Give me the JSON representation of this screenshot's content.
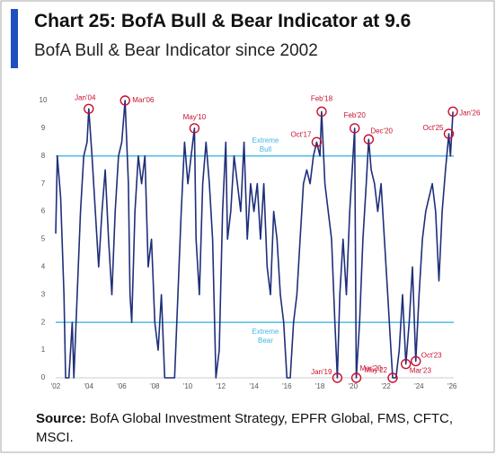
{
  "chart_data": {
    "type": "line",
    "title": "Chart 25: BofA Bull & Bear Indicator at 9.6",
    "subtitle": "BofA Bull & Bear Indicator since 2002",
    "source_label": "Source:",
    "source": "BofA Global Investment Strategy, EPFR Global, FMS, CFTC, MSCI.",
    "x": [
      2002.0,
      2002.1,
      2002.3,
      2002.5,
      2002.6,
      2002.8,
      2003.0,
      2003.1,
      2003.3,
      2003.5,
      2003.7,
      2003.9,
      2004.0,
      2004.2,
      2004.4,
      2004.6,
      2004.8,
      2005.0,
      2005.2,
      2005.4,
      2005.6,
      2005.8,
      2006.0,
      2006.2,
      2006.4,
      2006.5,
      2006.6,
      2006.8,
      2007.0,
      2007.2,
      2007.4,
      2007.6,
      2007.8,
      2008.0,
      2008.2,
      2008.4,
      2008.6,
      2008.9,
      2009.2,
      2009.4,
      2009.6,
      2009.8,
      2010.0,
      2010.2,
      2010.4,
      2010.5,
      2010.7,
      2010.9,
      2011.1,
      2011.3,
      2011.5,
      2011.7,
      2011.9,
      2012.1,
      2012.3,
      2012.4,
      2012.6,
      2012.8,
      2013.0,
      2013.2,
      2013.4,
      2013.6,
      2013.8,
      2014.0,
      2014.2,
      2014.4,
      2014.6,
      2014.8,
      2015.0,
      2015.2,
      2015.4,
      2015.6,
      2015.8,
      2016.0,
      2016.2,
      2016.4,
      2016.6,
      2016.8,
      2017.0,
      2017.2,
      2017.4,
      2017.6,
      2017.8,
      2018.0,
      2018.1,
      2018.3,
      2018.5,
      2018.7,
      2018.9,
      2019.05,
      2019.2,
      2019.4,
      2019.6,
      2019.8,
      2020.0,
      2020.1,
      2020.2,
      2020.4,
      2020.6,
      2020.8,
      2020.95,
      2021.1,
      2021.3,
      2021.5,
      2021.7,
      2021.9,
      2022.1,
      2022.3,
      2022.4,
      2022.6,
      2022.8,
      2023.0,
      2023.2,
      2023.4,
      2023.6,
      2023.8,
      2024.0,
      2024.2,
      2024.4,
      2024.6,
      2024.8,
      2025.0,
      2025.2,
      2025.4,
      2025.6,
      2025.8,
      2025.9,
      2026.05
    ],
    "series": [
      {
        "name": "BofA Bull & Bear Indicator",
        "color": "#1f2f7a",
        "values": [
          5.2,
          8.0,
          6.5,
          3,
          0,
          0,
          2,
          0,
          3,
          6,
          8,
          8.5,
          9.7,
          8,
          6,
          4,
          6,
          7.5,
          5,
          3,
          6,
          8,
          8.5,
          10,
          7,
          3,
          2,
          6,
          8,
          7,
          8,
          4,
          5,
          2,
          1,
          3,
          0,
          0,
          0,
          3,
          6,
          8.5,
          7,
          8,
          9,
          5,
          3,
          7,
          8.5,
          7,
          5,
          0,
          1,
          6,
          8.5,
          5,
          6,
          8,
          7,
          6,
          8.5,
          5,
          7,
          6,
          7,
          5,
          7,
          4,
          3,
          6,
          5,
          3,
          2,
          0,
          0,
          2,
          3,
          5,
          7,
          7.5,
          7,
          8,
          8.5,
          8,
          9.6,
          7,
          6,
          5,
          2,
          0,
          3,
          5,
          3,
          6,
          8,
          9.0,
          0,
          2,
          5,
          7,
          8.6,
          7.5,
          7,
          6,
          7,
          5,
          3,
          1,
          0,
          0,
          1,
          3,
          0.5,
          2,
          4,
          0.6,
          3,
          5,
          6,
          6.5,
          7,
          6,
          3.5,
          6,
          7.5,
          8.8,
          8,
          9.6
        ]
      }
    ],
    "xlim": [
      2002,
      2026.1
    ],
    "xticks": [
      {
        "value": 2002,
        "label": "'02"
      },
      {
        "value": 2004,
        "label": "'04"
      },
      {
        "value": 2006,
        "label": "'06"
      },
      {
        "value": 2008,
        "label": "'08"
      },
      {
        "value": 2010,
        "label": "'10"
      },
      {
        "value": 2012,
        "label": "'12"
      },
      {
        "value": 2014,
        "label": "'14"
      },
      {
        "value": 2016,
        "label": "'16"
      },
      {
        "value": 2018,
        "label": "'18"
      },
      {
        "value": 2020,
        "label": "'20"
      },
      {
        "value": 2022,
        "label": "'22"
      },
      {
        "value": 2024,
        "label": "'24"
      },
      {
        "value": 2026,
        "label": "'26"
      }
    ],
    "ylim": [
      0,
      10
    ],
    "yticks": [
      0,
      1,
      2,
      3,
      4,
      5,
      6,
      7,
      8,
      9,
      10
    ],
    "reference_lines": [
      {
        "value": 8,
        "label": "Extreme Bull",
        "color": "#41b6e6"
      },
      {
        "value": 2,
        "label": "Extreme Bear",
        "color": "#41b6e6"
      }
    ],
    "annotations": [
      {
        "label": "Jan'04",
        "x": 2004.0,
        "y": 9.7
      },
      {
        "label": "Mar'06",
        "x": 2006.2,
        "y": 10
      },
      {
        "label": "May'10",
        "x": 2010.4,
        "y": 9.0
      },
      {
        "label": "Oct'17",
        "x": 2017.8,
        "y": 8.5
      },
      {
        "label": "Feb'18",
        "x": 2018.1,
        "y": 9.6
      },
      {
        "label": "Feb'20",
        "x": 2020.1,
        "y": 9.0
      },
      {
        "label": "Dec'20",
        "x": 2020.95,
        "y": 8.6
      },
      {
        "label": "Jan'19",
        "x": 2019.05,
        "y": 0
      },
      {
        "label": "Mar'20",
        "x": 2020.2,
        "y": 0
      },
      {
        "label": "May'22",
        "x": 2022.4,
        "y": 0
      },
      {
        "label": "Mar'23",
        "x": 2023.2,
        "y": 0.5
      },
      {
        "label": "Oct'23",
        "x": 2023.8,
        "y": 0.6
      },
      {
        "label": "Oct'25",
        "x": 2025.8,
        "y": 8.8
      },
      {
        "label": "Jan'26",
        "x": 2026.05,
        "y": 9.6
      }
    ],
    "annotation_color": "#c8102e"
  }
}
